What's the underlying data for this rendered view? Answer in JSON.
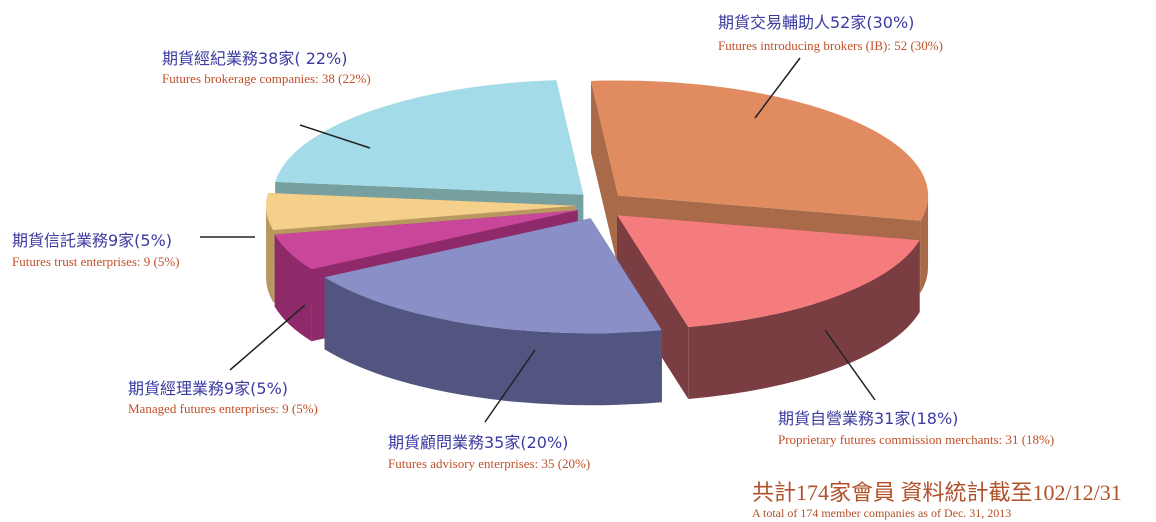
{
  "chart_data": {
    "type": "pie",
    "categories": [
      "期貨交易輔助人52家(30%)",
      "期貨自營業務31家(18%)",
      "期貨顧問業務35家(20%)",
      "期貨經理業務9家(5%)",
      "期貨信託業務9家(5%)",
      "期貨經紀業務38家( 22%)"
    ],
    "categories_en": [
      "Futures introducing brokers (IB): 52 (30%)",
      "Proprietary futures commission merchants: 31 (18%)",
      "Futures advisory enterprises: 35 (20%)",
      "Managed futures enterprises: 9 (5%)",
      "Futures trust enterprises: 9 (5%)",
      "Futures brokerage companies: 38 (22%)"
    ],
    "values": [
      52,
      31,
      35,
      9,
      9,
      38
    ],
    "colors": [
      "#e08c60",
      "#f47c7c",
      "#8a8fc8",
      "#c8479a",
      "#f5d08a",
      "#a3dbe8"
    ],
    "side_colors": [
      "#a86a48",
      "#7a3e42",
      "#525580",
      "#8e2a6a",
      "#b89860",
      "#76a0a0"
    ],
    "note": "共計174家會員 資料統計截至102/12/31",
    "note_en": "A total of 174 member companies as of Dec. 31, 2013"
  }
}
